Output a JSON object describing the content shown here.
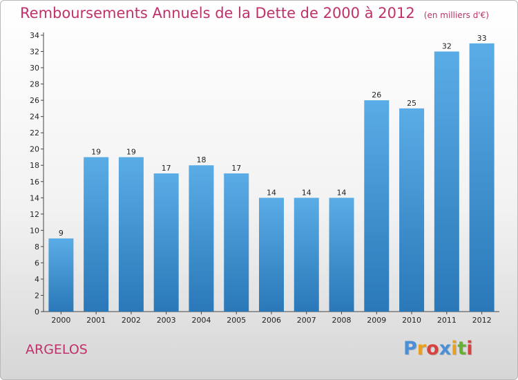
{
  "header": {
    "title": "Remboursements Annuels de la Dette de 2000 à 2012",
    "unit": "(en milliers d'€)"
  },
  "footer": {
    "commune": "ARGELOS",
    "logo_text": "Proxiti"
  },
  "colors": {
    "title": "#c0306a",
    "bar_top": "#5aace6",
    "bar_bottom": "#2a78b8",
    "logo": [
      "#4a90d9",
      "#e8a020",
      "#d94040",
      "#4a90d9",
      "#e8a020",
      "#66b032",
      "#d94040"
    ]
  },
  "chart_data": {
    "type": "bar",
    "title": "Remboursements Annuels de la Dette de 2000 à 2012",
    "xlabel": "",
    "ylabel": "",
    "categories": [
      "2000",
      "2001",
      "2002",
      "2003",
      "2004",
      "2005",
      "2006",
      "2007",
      "2008",
      "2009",
      "2010",
      "2011",
      "2012"
    ],
    "values": [
      9,
      19,
      19,
      17,
      18,
      17,
      14,
      14,
      14,
      26,
      25,
      32,
      33
    ],
    "ylim": [
      0,
      34
    ],
    "yticks": [
      0,
      2,
      4,
      6,
      8,
      10,
      12,
      14,
      16,
      18,
      20,
      22,
      24,
      26,
      28,
      30,
      32,
      34
    ],
    "grid": false,
    "legend": "none"
  }
}
